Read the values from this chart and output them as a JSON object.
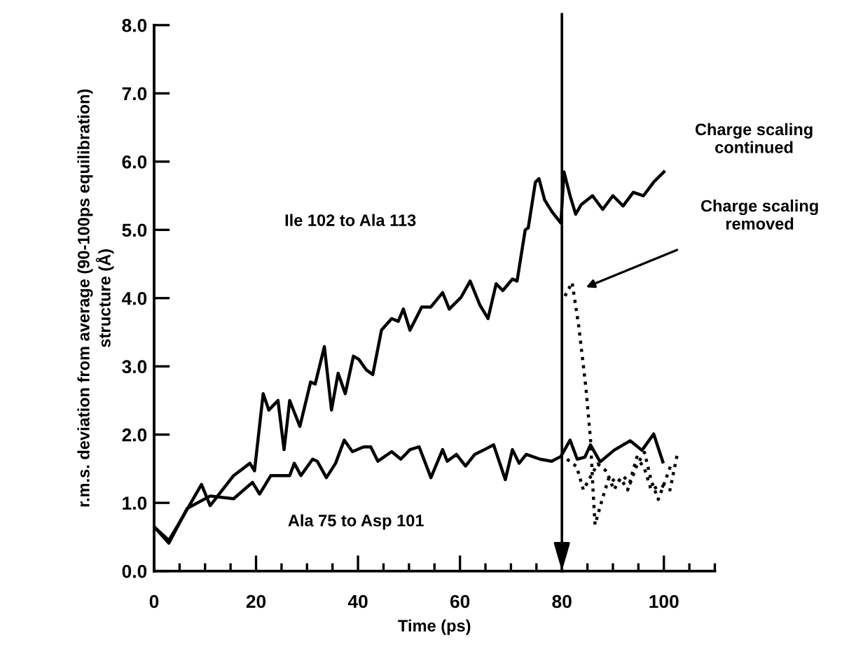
{
  "chart_data": {
    "type": "line",
    "xlabel": "Time (ps)",
    "ylabel": "r.m.s. deviation from average (90-100ps equilibration)\nstructure (Å)",
    "xlim": [
      0,
      110
    ],
    "ylim": [
      0,
      8.0
    ],
    "xticks": [
      0,
      {
        "value": 5,
        "label": null
      },
      {
        "value": 10,
        "label": null
      },
      {
        "value": 15,
        "label": null
      },
      20,
      {
        "value": 25,
        "label": null
      },
      {
        "value": 30,
        "label": null
      },
      {
        "value": 35,
        "label": null
      },
      40,
      {
        "value": 45,
        "label": null
      },
      {
        "value": 50,
        "label": null
      },
      {
        "value": 55,
        "label": null
      },
      60,
      {
        "value": 65,
        "label": null
      },
      {
        "value": 70,
        "label": null
      },
      {
        "value": 75,
        "label": null
      },
      80,
      {
        "value": 85,
        "label": null
      },
      {
        "value": 90,
        "label": null
      },
      {
        "value": 95,
        "label": null
      },
      100,
      {
        "value": 105,
        "label": null
      },
      {
        "value": 110,
        "label": null
      }
    ],
    "yticks": [
      {
        "value": 0,
        "label": "0.0"
      },
      {
        "value": 1,
        "label": "1.0"
      },
      {
        "value": 2,
        "label": "2.0"
      },
      {
        "value": 3,
        "label": "3.0"
      },
      {
        "value": 4,
        "label": "4.0"
      },
      {
        "value": 5,
        "label": "5.0"
      },
      {
        "value": 6,
        "label": "6.0"
      },
      {
        "value": 7,
        "label": "7.0"
      },
      {
        "value": 8,
        "label": "8.0"
      }
    ],
    "grid": false,
    "legend": false,
    "marker": "none",
    "series": [
      {
        "color": "#000000",
        "line_style": "solid",
        "x": [
          0,
          2.9,
          5.6,
          9.3,
          11,
          15.6,
          18.8,
          19.7,
          21.4,
          22.5,
          24.3,
          25.5,
          26.6,
          28.6,
          30.7,
          31.6,
          33.4,
          34.8,
          36.1,
          37.5,
          39.1,
          40.2,
          41.6,
          42.9,
          44.6,
          46.6,
          47.9,
          48.9,
          50.2,
          52.5,
          54.3,
          56.6,
          57.9,
          60.2,
          62,
          63.9,
          65.5,
          67.1,
          68.4,
          70.3,
          71.2,
          72.8,
          73.4,
          74.8,
          75.5,
          76.6,
          78,
          79.8,
          80.4,
          81.6,
          82.7,
          83.8,
          86,
          88,
          90,
          92,
          94,
          96,
          98,
          100
        ],
        "values": [
          0.65,
          0.45,
          0.79,
          1.27,
          0.96,
          1.4,
          1.58,
          1.47,
          2.6,
          2.36,
          2.5,
          1.78,
          2.5,
          2.12,
          2.77,
          2.74,
          3.29,
          2.36,
          2.9,
          2.6,
          3.15,
          3.1,
          2.95,
          2.88,
          3.53,
          3.7,
          3.66,
          3.84,
          3.53,
          3.87,
          3.87,
          4.08,
          3.84,
          4.01,
          4.25,
          3.9,
          3.7,
          4.21,
          4.11,
          4.28,
          4.25,
          5.0,
          5.03,
          5.7,
          5.75,
          5.44,
          5.27,
          5.1,
          5.85,
          5.5,
          5.23,
          5.37,
          5.5,
          5.3,
          5.5,
          5.35,
          5.55,
          5.5,
          5.7,
          5.85
        ]
      },
      {
        "color": "#000000",
        "line_style": "solid",
        "x": [
          0,
          2.9,
          6.5,
          11,
          15.6,
          19.3,
          20.7,
          22.9,
          26.6,
          27.5,
          28.8,
          31.1,
          32,
          33.8,
          35.6,
          37.3,
          38.9,
          41.1,
          42.5,
          43.9,
          46.6,
          48.4,
          50.2,
          52,
          54.3,
          56.6,
          57.5,
          59.3,
          61.1,
          62.9,
          64.8,
          66.6,
          68.9,
          70.3,
          71.6,
          73,
          75.7,
          78,
          79.8,
          81.6,
          83,
          84.5,
          85.6,
          87.5,
          90.2,
          93.4,
          95.7,
          98,
          99.8
        ],
        "values": [
          0.65,
          0.41,
          0.92,
          1.1,
          1.06,
          1.3,
          1.13,
          1.4,
          1.4,
          1.58,
          1.4,
          1.64,
          1.61,
          1.37,
          1.58,
          1.92,
          1.75,
          1.82,
          1.82,
          1.61,
          1.75,
          1.64,
          1.78,
          1.82,
          1.37,
          1.78,
          1.61,
          1.71,
          1.54,
          1.71,
          1.78,
          1.85,
          1.34,
          1.78,
          1.58,
          1.71,
          1.64,
          1.61,
          1.68,
          1.92,
          1.64,
          1.67,
          1.85,
          1.6,
          1.77,
          1.91,
          1.77,
          2.01,
          1.6
        ]
      },
      {
        "color": "#000000",
        "line_style": "dotted",
        "x": [
          80.6,
          82,
          83.3,
          84.7,
          85.6,
          86.1,
          86.5,
          87.9,
          89.3,
          90.7,
          92,
          93.4,
          94.8,
          96.2,
          97.5,
          98.9,
          100.3,
          101.6
        ],
        "values": [
          4.03,
          4.23,
          3.59,
          2.69,
          1.94,
          1.19,
          0.68,
          1.05,
          1.39,
          1.29,
          1.39,
          1.29,
          1.57,
          1.74,
          1.33,
          1.05,
          1.33,
          1.6
        ]
      },
      {
        "color": "#000000",
        "line_style": "dotted",
        "x": [
          81,
          82.9,
          84.2,
          87,
          88.8,
          90.2,
          91.5,
          92.9,
          94.7,
          96.2,
          97.5,
          99.4,
          101.2,
          102.6
        ],
        "values": [
          1.64,
          1.53,
          1.19,
          1.57,
          1.46,
          1.19,
          1.36,
          1.19,
          1.67,
          1.5,
          1.19,
          1.26,
          1.19,
          1.7
        ]
      }
    ],
    "ref_lines": [
      {
        "axis": "x",
        "value": 80,
        "color": "#000000",
        "line_style": "solid"
      }
    ],
    "annotations": [
      "Ile 102 to Ala 113",
      "Ala 75 to Asp 101",
      "Charge scaling\ncontinued",
      "Charge scaling\nremoved"
    ]
  }
}
